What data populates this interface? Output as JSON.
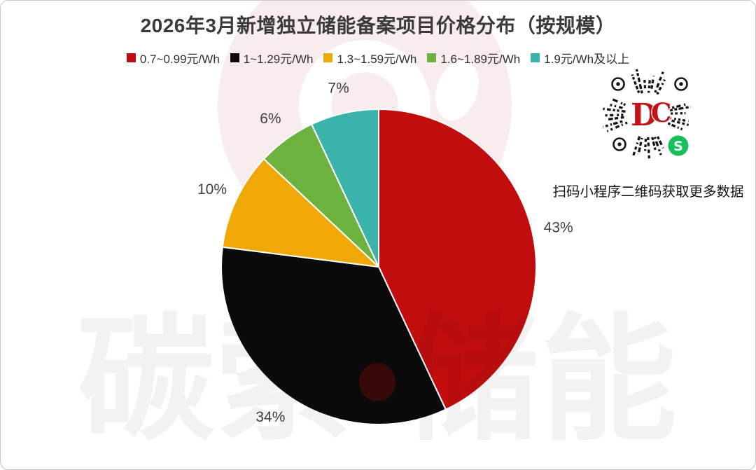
{
  "page": {
    "background": "#ffffff",
    "card_border_color": "#c5c8cd"
  },
  "chart_data": {
    "type": "pie",
    "title": "2026年3月新增独立储能备案项目价格分布（按规模）",
    "categories": [
      "0.7~0.99元/Wh",
      "1~1.29元/Wh",
      "1.3~1.59元/Wh",
      "1.6~1.89元/Wh",
      "1.9元/Wh及以上"
    ],
    "values": [
      43,
      34,
      10,
      6,
      7
    ],
    "labels": [
      "43%",
      "34%",
      "10%",
      "6%",
      "7%"
    ],
    "unit": "%",
    "colors": [
      "#c20d0e",
      "#0a0a0a",
      "#efa805",
      "#6cb23f",
      "#3ab4ab"
    ],
    "legend_position": "top",
    "start_angle_deg": 0,
    "direction": "clockwise",
    "label_color": "#3f3f3f",
    "slice_separator_color": "#ffffff"
  },
  "qr": {
    "caption": "扫码小程序二维码获取更多数据",
    "center_logo": {
      "d": "D",
      "c": "C"
    },
    "mini_program_glyph": "S",
    "logo_red": "#c21418",
    "wechat_green": "#15c05c"
  },
  "watermark": {
    "text": "碳索·储能"
  }
}
